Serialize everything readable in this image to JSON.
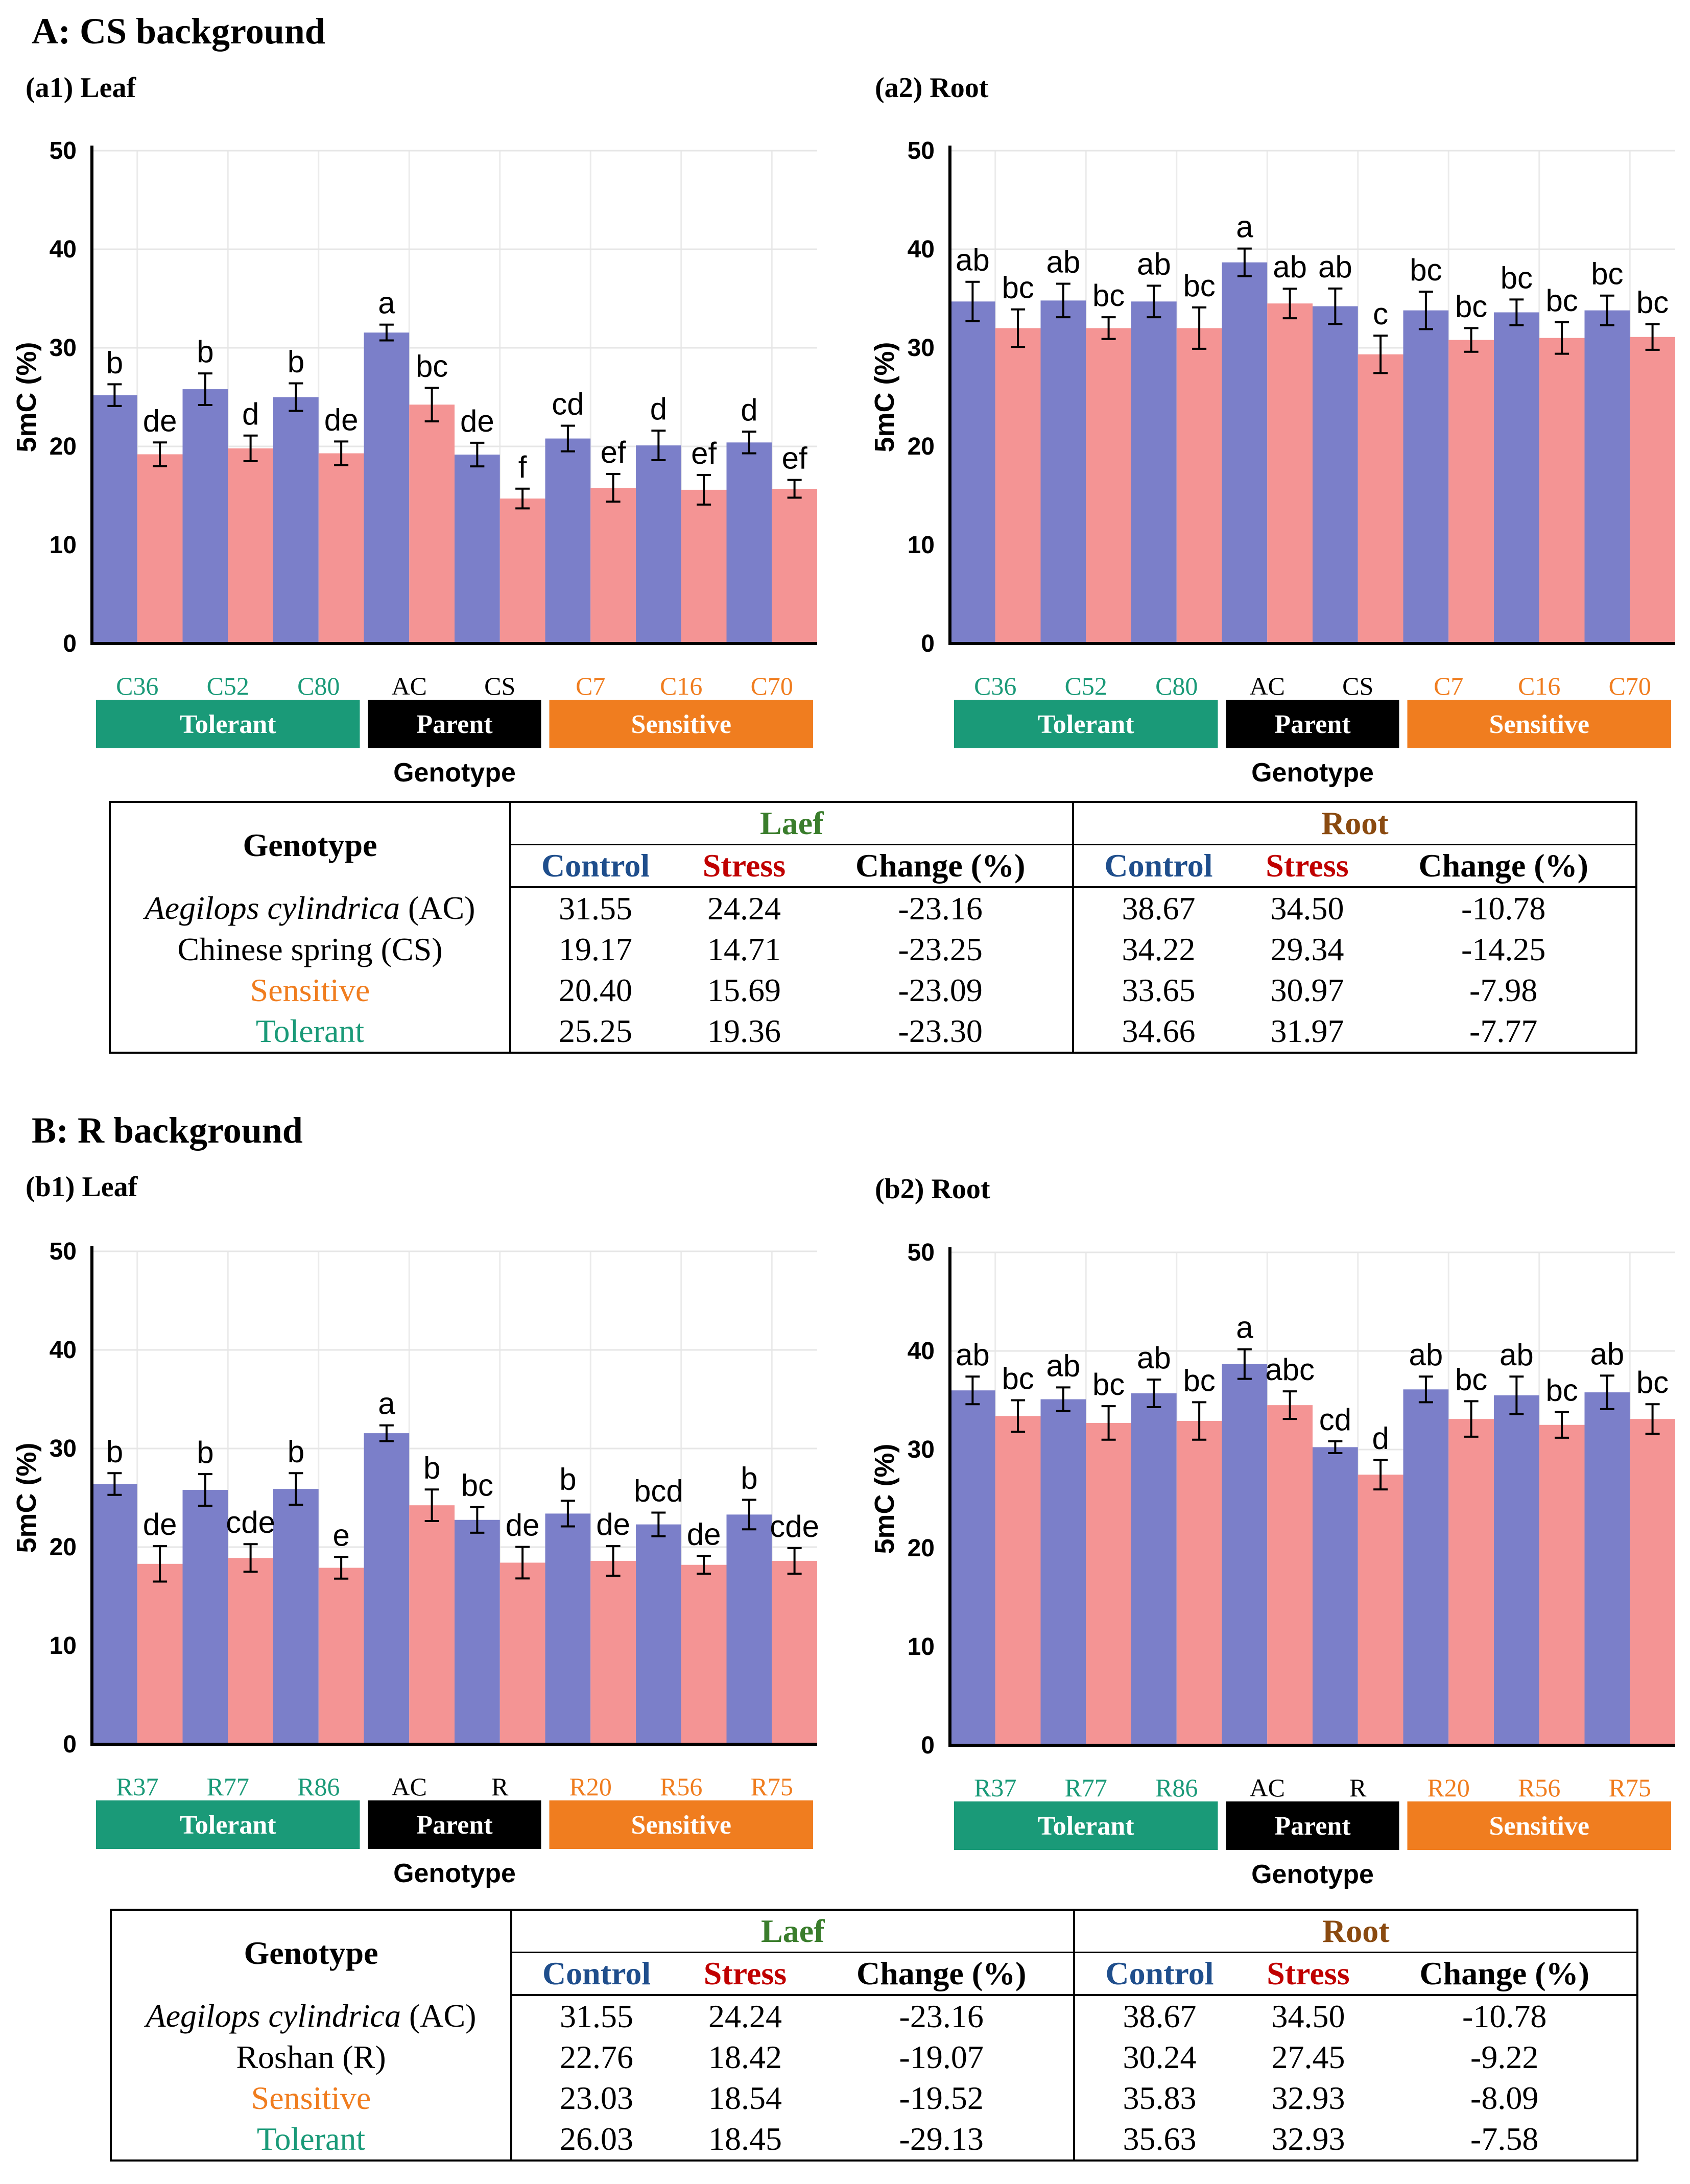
{
  "sections": {
    "A": {
      "title": "A: CS background",
      "leaf_title": "(a1) Leaf",
      "root_title": "(a2) Root",
      "table": {
        "genotype_header": "Genotype",
        "leaf_header": "Laef",
        "root_header": "Root",
        "control_label": "Control",
        "stress_label": "Stress",
        "change_label": "Change (%)",
        "rows": [
          {
            "label_prefix": "Aegilops cylindrica",
            "label_suffix": " (AC)",
            "italic": true,
            "color": "black",
            "leaf_control": "31.55",
            "leaf_stress": "24.24",
            "leaf_change": "-23.16",
            "root_control": "38.67",
            "root_stress": "34.50",
            "root_change": "-10.78"
          },
          {
            "label_prefix": "Chinese spring (CS)",
            "label_suffix": "",
            "italic": false,
            "color": "black",
            "leaf_control": "19.17",
            "leaf_stress": "14.71",
            "leaf_change": "-23.25",
            "root_control": "34.22",
            "root_stress": "29.34",
            "root_change": "-14.25"
          },
          {
            "label_prefix": "Sensitive",
            "label_suffix": "",
            "italic": false,
            "color": "sensitive",
            "leaf_control": "20.40",
            "leaf_stress": "15.69",
            "leaf_change": "-23.09",
            "root_control": "33.65",
            "root_stress": "30.97",
            "root_change": "-7.98"
          },
          {
            "label_prefix": "Tolerant",
            "label_suffix": "",
            "italic": false,
            "color": "tolerant",
            "leaf_control": "25.25",
            "leaf_stress": "19.36",
            "leaf_change": "-23.30",
            "root_control": "34.66",
            "root_stress": "31.97",
            "root_change": "-7.77"
          }
        ]
      }
    },
    "B": {
      "title": "B: R background",
      "leaf_title": "(b1) Leaf",
      "root_title": "(b2) Root",
      "table": {
        "genotype_header": "Genotype",
        "leaf_header": "Laef",
        "root_header": "Root",
        "control_label": "Control",
        "stress_label": "Stress",
        "change_label": "Change (%)",
        "rows": [
          {
            "label_prefix": "Aegilops cylindrica",
            "label_suffix": " (AC)",
            "italic": true,
            "color": "black",
            "leaf_control": "31.55",
            "leaf_stress": "24.24",
            "leaf_change": "-23.16",
            "root_control": "38.67",
            "root_stress": "34.50",
            "root_change": "-10.78"
          },
          {
            "label_prefix": "Roshan (R)",
            "label_suffix": "",
            "italic": false,
            "color": "black",
            "leaf_control": "22.76",
            "leaf_stress": "18.42",
            "leaf_change": "-19.07",
            "root_control": "30.24",
            "root_stress": "27.45",
            "root_change": "-9.22"
          },
          {
            "label_prefix": "Sensitive",
            "label_suffix": "",
            "italic": false,
            "color": "sensitive",
            "leaf_control": "23.03",
            "leaf_stress": "18.54",
            "leaf_change": "-19.52",
            "root_control": "35.83",
            "root_stress": "32.93",
            "root_change": "-8.09"
          },
          {
            "label_prefix": "Tolerant",
            "label_suffix": "",
            "italic": false,
            "color": "tolerant",
            "leaf_control": "26.03",
            "leaf_stress": "18.45",
            "leaf_change": "-29.13",
            "root_control": "35.63",
            "root_stress": "32.93",
            "root_change": "-7.58"
          }
        ]
      }
    }
  },
  "colors": {
    "control": "#7b7fc9",
    "stress": "#f49494",
    "tolerant": "#1a9a78",
    "parent": "#000000",
    "sensitive": "#f07d1f"
  },
  "chart_data": [
    {
      "id": "a1",
      "type": "bar",
      "title": "(a1) Leaf",
      "ylabel": "5mC (%)",
      "xlabel": "Genotype",
      "ylim": [
        0,
        50
      ],
      "yticks": [
        "0",
        "10",
        "20",
        "30",
        "40",
        "50"
      ],
      "categories": [
        "C36",
        "C52",
        "C80",
        "AC",
        "CS",
        "C7",
        "C16",
        "C70"
      ],
      "category_groups": [
        "tolerant",
        "tolerant",
        "tolerant",
        "parent",
        "parent",
        "sensitive",
        "sensitive",
        "sensitive"
      ],
      "groups": [
        {
          "label": "Tolerant",
          "kind": "tolerant",
          "first": 0,
          "last": 2
        },
        {
          "label": "Parent",
          "kind": "parent",
          "first": 3,
          "last": 4
        },
        {
          "label": "Sensitive",
          "kind": "sensitive",
          "first": 5,
          "last": 7
        }
      ],
      "series": [
        {
          "name": "Control",
          "values": [
            25.2,
            25.8,
            25.0,
            31.55,
            19.17,
            20.8,
            20.1,
            20.4
          ],
          "errors": [
            1.1,
            1.6,
            1.4,
            0.8,
            1.2,
            1.3,
            1.5,
            1.1
          ],
          "letters": [
            "b",
            "b",
            "b",
            "a",
            "de",
            "cd",
            "d",
            "d"
          ]
        },
        {
          "name": "Stress",
          "values": [
            19.2,
            19.8,
            19.3,
            24.24,
            14.71,
            15.8,
            15.6,
            15.7
          ],
          "errors": [
            1.2,
            1.3,
            1.2,
            1.7,
            1.0,
            1.4,
            1.5,
            0.9
          ],
          "letters": [
            "de",
            "d",
            "de",
            "bc",
            "f",
            "ef",
            "ef",
            "ef"
          ]
        }
      ]
    },
    {
      "id": "a2",
      "type": "bar",
      "title": "(a2) Root",
      "ylabel": "5mC (%)",
      "xlabel": "Genotype",
      "ylim": [
        0,
        50
      ],
      "yticks": [
        "0",
        "10",
        "20",
        "30",
        "40",
        "50"
      ],
      "categories": [
        "C36",
        "C52",
        "C80",
        "AC",
        "CS",
        "C7",
        "C16",
        "C70"
      ],
      "category_groups": [
        "tolerant",
        "tolerant",
        "tolerant",
        "parent",
        "parent",
        "sensitive",
        "sensitive",
        "sensitive"
      ],
      "groups": [
        {
          "label": "Tolerant",
          "kind": "tolerant",
          "first": 0,
          "last": 2
        },
        {
          "label": "Parent",
          "kind": "parent",
          "first": 3,
          "last": 4
        },
        {
          "label": "Sensitive",
          "kind": "sensitive",
          "first": 5,
          "last": 7
        }
      ],
      "series": [
        {
          "name": "Control",
          "values": [
            34.7,
            34.8,
            34.7,
            38.67,
            34.22,
            33.8,
            33.6,
            33.8
          ],
          "errors": [
            2.0,
            1.7,
            1.6,
            1.4,
            1.8,
            1.9,
            1.3,
            1.5
          ],
          "letters": [
            "ab",
            "ab",
            "ab",
            "a",
            "ab",
            "bc",
            "bc",
            "bc"
          ]
        },
        {
          "name": "Stress",
          "values": [
            32.0,
            32.0,
            32.0,
            34.5,
            29.34,
            30.8,
            31.0,
            31.1
          ],
          "errors": [
            1.9,
            1.1,
            2.1,
            1.5,
            1.9,
            1.2,
            1.6,
            1.3
          ],
          "letters": [
            "bc",
            "bc",
            "bc",
            "ab",
            "c",
            "bc",
            "bc",
            "bc"
          ]
        }
      ]
    },
    {
      "id": "b1",
      "type": "bar",
      "title": "(b1) Leaf",
      "ylabel": "5mC (%)",
      "xlabel": "Genotype",
      "ylim": [
        0,
        50
      ],
      "yticks": [
        "0",
        "10",
        "20",
        "30",
        "40",
        "50"
      ],
      "categories": [
        "R37",
        "R77",
        "R86",
        "AC",
        "R",
        "R20",
        "R56",
        "R75"
      ],
      "category_groups": [
        "tolerant",
        "tolerant",
        "tolerant",
        "parent",
        "parent",
        "sensitive",
        "sensitive",
        "sensitive"
      ],
      "groups": [
        {
          "label": "Tolerant",
          "kind": "tolerant",
          "first": 0,
          "last": 2
        },
        {
          "label": "Parent",
          "kind": "parent",
          "first": 3,
          "last": 4
        },
        {
          "label": "Sensitive",
          "kind": "sensitive",
          "first": 5,
          "last": 7
        }
      ],
      "series": [
        {
          "name": "Control",
          "values": [
            26.4,
            25.8,
            25.9,
            31.55,
            22.76,
            23.4,
            22.3,
            23.3
          ],
          "errors": [
            1.1,
            1.6,
            1.6,
            0.8,
            1.3,
            1.3,
            1.2,
            1.5
          ],
          "letters": [
            "b",
            "b",
            "b",
            "a",
            "bc",
            "b",
            "bcd",
            "b"
          ]
        },
        {
          "name": "Stress",
          "values": [
            18.3,
            18.9,
            17.9,
            24.24,
            18.42,
            18.6,
            18.2,
            18.6
          ],
          "errors": [
            1.8,
            1.4,
            1.1,
            1.6,
            1.6,
            1.5,
            0.9,
            1.3
          ],
          "letters": [
            "de",
            "cde",
            "e",
            "b",
            "de",
            "de",
            "de",
            "cde"
          ]
        }
      ]
    },
    {
      "id": "b2",
      "type": "bar",
      "title": "(b2) Root",
      "ylabel": "5mC (%)",
      "xlabel": "Genotype",
      "ylim": [
        0,
        50
      ],
      "yticks": [
        "0",
        "10",
        "20",
        "30",
        "40",
        "50"
      ],
      "categories": [
        "R37",
        "R77",
        "R86",
        "AC",
        "R",
        "R20",
        "R56",
        "R75"
      ],
      "category_groups": [
        "tolerant",
        "tolerant",
        "tolerant",
        "parent",
        "parent",
        "sensitive",
        "sensitive",
        "sensitive"
      ],
      "groups": [
        {
          "label": "Tolerant",
          "kind": "tolerant",
          "first": 0,
          "last": 2
        },
        {
          "label": "Parent",
          "kind": "parent",
          "first": 3,
          "last": 4
        },
        {
          "label": "Sensitive",
          "kind": "sensitive",
          "first": 5,
          "last": 7
        }
      ],
      "series": [
        {
          "name": "Control",
          "values": [
            36.0,
            35.1,
            35.7,
            38.67,
            30.24,
            36.1,
            35.5,
            35.8
          ],
          "errors": [
            1.4,
            1.2,
            1.4,
            1.5,
            0.6,
            1.3,
            1.9,
            1.7
          ],
          "letters": [
            "ab",
            "ab",
            "ab",
            "a",
            "cd",
            "ab",
            "ab",
            "ab"
          ]
        },
        {
          "name": "Stress",
          "values": [
            33.4,
            32.7,
            32.9,
            34.5,
            27.45,
            33.1,
            32.5,
            33.1
          ],
          "errors": [
            1.6,
            1.7,
            1.9,
            1.4,
            1.5,
            1.8,
            1.3,
            1.5
          ],
          "letters": [
            "bc",
            "bc",
            "bc",
            "abc",
            "d",
            "bc",
            "bc",
            "bc"
          ]
        }
      ]
    }
  ]
}
